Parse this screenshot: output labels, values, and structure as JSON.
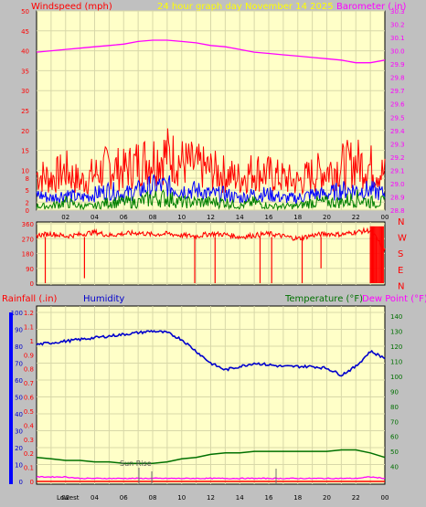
{
  "header": {
    "left_label": "Windspeed (mph)",
    "center_label": "24 hour graph day   November 14 2025",
    "right_label": "Barometer (.in)"
  },
  "panel_bottom_labels": {
    "rainfall": "Rainfall (.in)",
    "humidity": "Humidity",
    "temperature": "Temperature (°F)",
    "dewpoint": "Dew Point (°F)"
  },
  "compass": [
    "N",
    "W",
    "S",
    "E",
    "N"
  ],
  "annotations": {
    "sunrise": "Sun Rise",
    "lowest": "Lowest",
    "lowest_tick": "02"
  },
  "colors": {
    "wind_gust": "#ff0000",
    "wind_avg": "#0000ff",
    "wind_low": "#008000",
    "barometer": "#ff00ff",
    "direction": "#ff0000",
    "humidity": "#0000cc",
    "temperature": "#007000",
    "dewpoint": "#ff00ff",
    "rainfall": "#ff0000",
    "plot_bg": "#ffffc8",
    "frame_bg": "#c0c0c0",
    "title": "#ffff00"
  },
  "chart_data": [
    {
      "type": "line",
      "title": "24 hour graph day   November 14 2025",
      "x_ticks": [
        "02",
        "04",
        "06",
        "08",
        "10",
        "12",
        "14",
        "16",
        "18",
        "20",
        "22",
        "00"
      ],
      "y_left_label": "Windspeed (mph)",
      "y_left_ticks": [
        0,
        2,
        5,
        8,
        10,
        15,
        20,
        25,
        30,
        35,
        40,
        45,
        50
      ],
      "y_left_lim": [
        0,
        50
      ],
      "y_right_label": "Barometer (.in)",
      "y_right_ticks": [
        28.8,
        28.9,
        29.0,
        29.1,
        29.2,
        29.3,
        29.4,
        29.5,
        29.6,
        29.7,
        29.8,
        29.9,
        30.0,
        30.1,
        30.2,
        30.3
      ],
      "y_right_lim": [
        28.8,
        30.3
      ],
      "grid": true,
      "series": [
        {
          "name": "Barometer (.in)",
          "axis": "right",
          "x": [
            0,
            1,
            2,
            3,
            4,
            5,
            6,
            7,
            8,
            9,
            10,
            11,
            12,
            13,
            14,
            15,
            16,
            17,
            18,
            19,
            20,
            21,
            22,
            23,
            24
          ],
          "values": [
            29.99,
            30.0,
            30.01,
            30.02,
            30.03,
            30.04,
            30.05,
            30.07,
            30.08,
            30.08,
            30.07,
            30.06,
            30.04,
            30.03,
            30.01,
            29.99,
            29.98,
            29.97,
            29.96,
            29.95,
            29.94,
            29.93,
            29.91,
            29.91,
            29.93
          ]
        },
        {
          "name": "Wind gust",
          "axis": "left",
          "x": [
            0,
            1,
            2,
            3,
            4,
            5,
            6,
            7,
            8,
            9,
            10,
            11,
            12,
            13,
            14,
            15,
            16,
            17,
            18,
            19,
            20,
            21,
            22,
            23,
            24
          ],
          "values": [
            9,
            8,
            10,
            7,
            9,
            11,
            10,
            12,
            13,
            14,
            12,
            11,
            10,
            9,
            8,
            10,
            9,
            8,
            7,
            9,
            10,
            11,
            12,
            11,
            9
          ]
        },
        {
          "name": "Wind average",
          "axis": "left",
          "x": [
            0,
            1,
            2,
            3,
            4,
            5,
            6,
            7,
            8,
            9,
            10,
            11,
            12,
            13,
            14,
            15,
            16,
            17,
            18,
            19,
            20,
            21,
            22,
            23,
            24
          ],
          "values": [
            4,
            3,
            4,
            3,
            4,
            5,
            4,
            5,
            6,
            6,
            5,
            5,
            4,
            4,
            3,
            4,
            4,
            3,
            3,
            4,
            4,
            5,
            5,
            5,
            4
          ]
        },
        {
          "name": "Wind low",
          "axis": "left",
          "x": [
            0,
            1,
            2,
            3,
            4,
            5,
            6,
            7,
            8,
            9,
            10,
            11,
            12,
            13,
            14,
            15,
            16,
            17,
            18,
            19,
            20,
            21,
            22,
            23,
            24
          ],
          "values": [
            1,
            1,
            2,
            1,
            1,
            2,
            2,
            2,
            3,
            3,
            2,
            2,
            2,
            2,
            1,
            2,
            1,
            1,
            1,
            2,
            2,
            2,
            3,
            2,
            2
          ]
        }
      ]
    },
    {
      "type": "line",
      "y_ticks": [
        0,
        90,
        180,
        270,
        360
      ],
      "y_lim": [
        0,
        360
      ],
      "series": [
        {
          "name": "Wind direction",
          "x": [
            0,
            1,
            2,
            3,
            4,
            5,
            6,
            7,
            8,
            9,
            10,
            11,
            12,
            13,
            14,
            15,
            16,
            17,
            18,
            19,
            20,
            21,
            22,
            23,
            24
          ],
          "values": [
            290,
            300,
            285,
            295,
            310,
            290,
            300,
            305,
            295,
            300,
            290,
            285,
            300,
            295,
            280,
            290,
            300,
            285,
            270,
            290,
            300,
            295,
            310,
            320,
            200
          ]
        }
      ],
      "spikes": [
        {
          "x": 0.6,
          "value": 0
        },
        {
          "x": 3.3,
          "value": 30
        },
        {
          "x": 10.9,
          "value": 0
        },
        {
          "x": 12.3,
          "value": 0
        },
        {
          "x": 15.4,
          "value": 0
        },
        {
          "x": 16.2,
          "value": 0
        },
        {
          "x": 18.3,
          "value": 0
        },
        {
          "x": 19.6,
          "value": 90
        },
        {
          "x": 23.0,
          "value": 0
        },
        {
          "x": 23.4,
          "value": 0
        },
        {
          "x": 23.8,
          "value": 0
        }
      ]
    },
    {
      "type": "line",
      "x_ticks": [
        "02",
        "04",
        "06",
        "08",
        "10",
        "12",
        "14",
        "16",
        "18",
        "20",
        "22",
        "00"
      ],
      "y_left_ticks": [
        0,
        10,
        20,
        30,
        40,
        50,
        60,
        70,
        80,
        90,
        100
      ],
      "y_left_lim": [
        0,
        100
      ],
      "y_rain_ticks": [
        0,
        0.1,
        0.2,
        0.3,
        0.4,
        0.5,
        0.6,
        0.7,
        0.8,
        0.9,
        1,
        1.1,
        1.2
      ],
      "y_rain_lim": [
        0,
        1.2
      ],
      "y_right_ticks": [
        40,
        50,
        60,
        70,
        80,
        90,
        100,
        110,
        120,
        130,
        140
      ],
      "y_right_lim": [
        30,
        145
      ],
      "grid": true,
      "series": [
        {
          "name": "Humidity",
          "axis": "left",
          "x": [
            0,
            1,
            2,
            3,
            4,
            5,
            6,
            7,
            8,
            9,
            10,
            11,
            12,
            13,
            14,
            15,
            16,
            17,
            18,
            19,
            20,
            21,
            22,
            23,
            24
          ],
          "values": [
            81,
            82,
            83,
            84,
            85,
            86,
            87,
            88,
            89,
            88,
            84,
            77,
            70,
            66,
            68,
            70,
            69,
            68,
            68,
            68,
            67,
            63,
            68,
            77,
            73
          ]
        },
        {
          "name": "Temperature (°F)",
          "axis": "right",
          "x": [
            0,
            1,
            2,
            3,
            4,
            5,
            6,
            7,
            8,
            9,
            10,
            11,
            12,
            13,
            14,
            15,
            16,
            17,
            18,
            19,
            20,
            21,
            22,
            23,
            24
          ],
          "values": [
            46,
            45,
            44,
            44,
            43,
            43,
            42,
            42,
            42,
            43,
            45,
            46,
            48,
            49,
            49,
            50,
            50,
            50,
            50,
            50,
            50,
            51,
            51,
            49,
            46
          ]
        },
        {
          "name": "Dew Point (°F)",
          "axis": "right",
          "x": [
            0,
            1,
            2,
            3,
            4,
            5,
            6,
            7,
            8,
            9,
            10,
            11,
            12,
            13,
            14,
            15,
            16,
            17,
            18,
            19,
            20,
            21,
            22,
            23,
            24
          ],
          "values": [
            33,
            33,
            33,
            32,
            32,
            32,
            32,
            32,
            32,
            32,
            32,
            32,
            32,
            32,
            32,
            32,
            32,
            32,
            32,
            32,
            32,
            32,
            32,
            33,
            32
          ]
        },
        {
          "name": "Rainfall (.in)",
          "axis": "rain",
          "x": [
            0,
            24
          ],
          "values": [
            0,
            0
          ]
        }
      ]
    }
  ]
}
